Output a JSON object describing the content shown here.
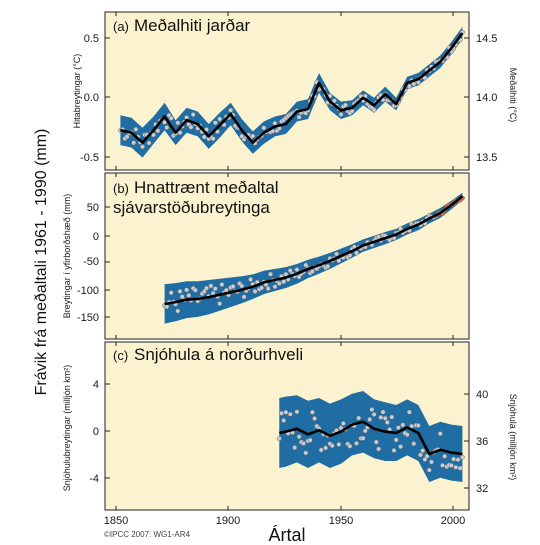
{
  "figure": {
    "big_ylabel": "Frávik frá meðaltali 1961 - 1990 (mm)",
    "xlabel": "Ártal",
    "credit": "©IPCC 2007: WG1-AR4",
    "xticks": [
      "1850",
      "1900",
      "1950",
      "2000"
    ]
  },
  "colors": {
    "panel_bg": "#fbf3cf",
    "band": "#1f6da3",
    "line": "#000000",
    "points": "#c9ccd3",
    "recent_points": "#e06a4a"
  },
  "chart_data": [
    {
      "type": "line",
      "tag": "(a)",
      "title": "Meðalhiti jarðar",
      "ylabel": "Hitabreytingar (°C)",
      "ylabel_right": "Meðalhiti (°C)",
      "yticks": [
        "0.5",
        "0.0",
        "-0.5"
      ],
      "yticks_right": [
        "14.5",
        "14.0",
        "13.5"
      ],
      "ylim": [
        -0.65,
        0.62
      ],
      "xlim": [
        1843,
        2008
      ],
      "x": [
        1850,
        1855,
        1860,
        1865,
        1870,
        1875,
        1880,
        1885,
        1890,
        1895,
        1900,
        1905,
        1910,
        1915,
        1920,
        1925,
        1930,
        1935,
        1940,
        1945,
        1950,
        1955,
        1960,
        1965,
        1970,
        1975,
        1980,
        1985,
        1990,
        1995,
        2000,
        2005
      ],
      "values": [
        -0.33,
        -0.35,
        -0.43,
        -0.33,
        -0.22,
        -0.35,
        -0.25,
        -0.28,
        -0.38,
        -0.29,
        -0.2,
        -0.33,
        -0.43,
        -0.35,
        -0.3,
        -0.28,
        -0.18,
        -0.16,
        0.05,
        -0.1,
        -0.17,
        -0.15,
        -0.07,
        -0.13,
        -0.04,
        -0.12,
        0.05,
        0.08,
        0.15,
        0.22,
        0.33,
        0.45
      ],
      "uncertainty": [
        0.12,
        0.12,
        0.12,
        0.11,
        0.11,
        0.1,
        0.1,
        0.1,
        0.1,
        0.1,
        0.09,
        0.09,
        0.09,
        0.09,
        0.08,
        0.08,
        0.08,
        0.08,
        0.08,
        0.07,
        0.07,
        0.06,
        0.06,
        0.06,
        0.06,
        0.05,
        0.05,
        0.05,
        0.05,
        0.05,
        0.05,
        0.05
      ]
    },
    {
      "type": "line",
      "tag": "(b)",
      "title": "Hnattrænt meðaltal",
      "title_line2": "sjávarstöðubreytinga",
      "ylabel": "Breytingar í yfirborðshæð (mm)",
      "yticks": [
        "50",
        "0",
        "-50",
        "-100",
        "-150"
      ],
      "ylim": [
        -190,
        80
      ],
      "xlim": [
        1843,
        2008
      ],
      "x": [
        1870,
        1875,
        1880,
        1885,
        1890,
        1895,
        1900,
        1905,
        1910,
        1915,
        1920,
        1925,
        1930,
        1935,
        1940,
        1945,
        1950,
        1955,
        1960,
        1965,
        1970,
        1975,
        1980,
        1985,
        1990,
        1995,
        2000,
        2005
      ],
      "values": [
        -133,
        -130,
        -126,
        -125,
        -122,
        -118,
        -114,
        -110,
        -105,
        -98,
        -94,
        -90,
        -84,
        -76,
        -70,
        -63,
        -55,
        -47,
        -38,
        -32,
        -26,
        -20,
        -11,
        -4,
        6,
        15,
        28,
        42
      ],
      "uncertainty": [
        32,
        31,
        30,
        29,
        28,
        26,
        24,
        22,
        20,
        19,
        18,
        17,
        16,
        15,
        14,
        13,
        12,
        11,
        10,
        10,
        10,
        9,
        9,
        9,
        8,
        8,
        7,
        6
      ]
    },
    {
      "type": "line",
      "tag": "(c)",
      "title": "Snjóhula á norðurhveli",
      "ylabel": "Snjóhulubreytingar (milljón km²)",
      "ylabel_right": "Snjóhula (milljón km²)",
      "yticks": [
        "4",
        "0",
        "-4"
      ],
      "yticks_right": [
        "40",
        "36",
        "32"
      ],
      "ylim": [
        -5.3,
        6.7
      ],
      "xlim": [
        1843,
        2008
      ],
      "x": [
        1922,
        1925,
        1930,
        1935,
        1940,
        1945,
        1950,
        1955,
        1960,
        1965,
        1970,
        1975,
        1980,
        1985,
        1990,
        1995,
        2000,
        2005
      ],
      "values": [
        0.2,
        0.3,
        0.5,
        0.1,
        0.4,
        0.0,
        0.3,
        0.8,
        1.0,
        0.5,
        0.3,
        0.2,
        0.6,
        0.2,
        -1.3,
        -1.0,
        -1.2,
        -1.3
      ],
      "uncertainty": [
        2.5,
        2.5,
        2.4,
        2.4,
        2.3,
        2.3,
        2.3,
        2.2,
        2.2,
        2.1,
        2.1,
        2.0,
        2.0,
        2.0,
        2.0,
        2.0,
        2.0,
        2.0
      ]
    }
  ]
}
